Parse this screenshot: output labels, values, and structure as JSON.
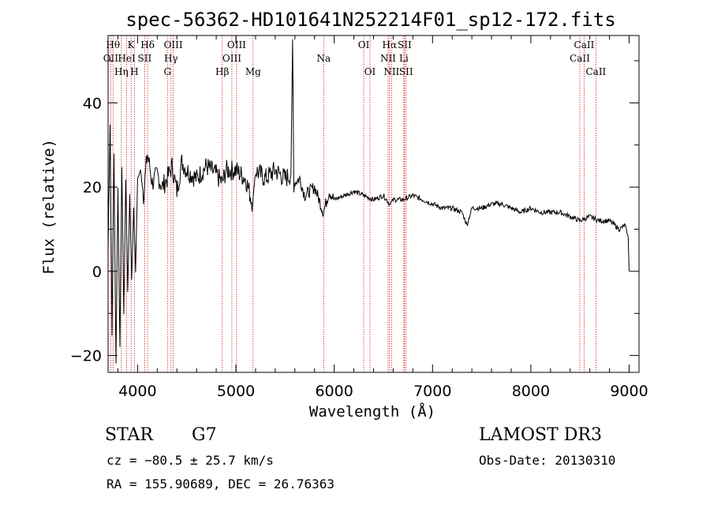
{
  "chart_data": {
    "type": "line",
    "title": "spec-56362-HD101641N252214F01_sp12-172.fits",
    "xlabel": "Wavelength (Å)",
    "ylabel": "Flux (relative)",
    "xlim": [
      3700,
      9100
    ],
    "ylim": [
      -24,
      56
    ],
    "xticks": [
      4000,
      5000,
      6000,
      7000,
      8000,
      9000
    ],
    "xtick_labels": [
      "4000",
      "5000",
      "6000",
      "7000",
      "8000",
      "9000"
    ],
    "yticks": [
      -20,
      0,
      20,
      40
    ],
    "ytick_labels": [
      "−20",
      "0",
      "20",
      "40"
    ],
    "grid": false,
    "series": [
      {
        "name": "spectrum",
        "x": [
          3700,
          3720,
          3740,
          3760,
          3780,
          3800,
          3820,
          3840,
          3860,
          3880,
          3900,
          3920,
          3940,
          3960,
          3980,
          4000,
          4030,
          4060,
          4100,
          4150,
          4200,
          4250,
          4300,
          4350,
          4400,
          4450,
          4500,
          4600,
          4700,
          4800,
          4860,
          4900,
          5000,
          5100,
          5170,
          5200,
          5300,
          5400,
          5500,
          5560,
          5577,
          5590,
          5650,
          5700,
          5800,
          5890,
          5950,
          6000,
          6100,
          6200,
          6300,
          6400,
          6500,
          6563,
          6600,
          6700,
          6800,
          6900,
          7000,
          7100,
          7200,
          7300,
          7350,
          7400,
          7500,
          7600,
          7700,
          7800,
          7900,
          8000,
          8100,
          8200,
          8300,
          8400,
          8500,
          8600,
          8700,
          8800,
          8900,
          8960,
          8990,
          9000
        ],
        "y": [
          5,
          35,
          -15,
          28,
          -22,
          20,
          -18,
          25,
          -10,
          22,
          -5,
          18,
          -2,
          15,
          0,
          22,
          24,
          18,
          28,
          21,
          23,
          20,
          22,
          25,
          19,
          26,
          24,
          22,
          25,
          23,
          21,
          24,
          24,
          22,
          16,
          24,
          22,
          24,
          22,
          23,
          55,
          21,
          22,
          18,
          20,
          14,
          19,
          17,
          18,
          19,
          18,
          17,
          18,
          16,
          17,
          17,
          18,
          17,
          16,
          15,
          15,
          14,
          11,
          15,
          15,
          16,
          16,
          15,
          14,
          15,
          14,
          14,
          14,
          13,
          12,
          13,
          12,
          12,
          10,
          11,
          8,
          0
        ]
      }
    ],
    "spectral_lines": [
      {
        "label": "OII",
        "wavelength": 3727,
        "row": 1
      },
      {
        "label": "Hθ",
        "wavelength": 3750,
        "row": 0
      },
      {
        "label": "Hη",
        "wavelength": 3835,
        "row": 2
      },
      {
        "label": "HeI",
        "wavelength": 3889,
        "row": 1
      },
      {
        "label": "K",
        "wavelength": 3934,
        "row": 0
      },
      {
        "label": "H",
        "wavelength": 3968,
        "row": 2
      },
      {
        "label": "SII",
        "wavelength": 4072,
        "row": 1
      },
      {
        "label": "Hδ",
        "wavelength": 4102,
        "row": 0
      },
      {
        "label": "OIII",
        "wavelength": 4363,
        "row": 0
      },
      {
        "label": "Hγ",
        "wavelength": 4340,
        "row": 1
      },
      {
        "label": "G",
        "wavelength": 4304,
        "row": 2
      },
      {
        "label": "Hβ",
        "wavelength": 4861,
        "row": 2
      },
      {
        "label": "OIII",
        "wavelength": 4959,
        "row": 1
      },
      {
        "label": "OIII",
        "wavelength": 5007,
        "row": 0
      },
      {
        "label": "Mg",
        "wavelength": 5175,
        "row": 2
      },
      {
        "label": "Na",
        "wavelength": 5893,
        "row": 1
      },
      {
        "label": "OI",
        "wavelength": 6300,
        "row": 0
      },
      {
        "label": "OI",
        "wavelength": 6364,
        "row": 2
      },
      {
        "label": "NII",
        "wavelength": 6548,
        "row": 1
      },
      {
        "label": "Hα",
        "wavelength": 6563,
        "row": 0
      },
      {
        "label": "NII",
        "wavelength": 6583,
        "row": 2
      },
      {
        "label": "Li",
        "wavelength": 6708,
        "row": 1
      },
      {
        "label": "SII",
        "wavelength": 6716,
        "row": 0
      },
      {
        "label": "SII",
        "wavelength": 6731,
        "row": 2
      },
      {
        "label": "CaII",
        "wavelength": 8498,
        "row": 1
      },
      {
        "label": "CaII",
        "wavelength": 8542,
        "row": 0
      },
      {
        "label": "CaII",
        "wavelength": 8662,
        "row": 2
      }
    ]
  },
  "info": {
    "class": "STAR",
    "subclass": "G7",
    "survey": "LAMOST DR3",
    "redshift": "cz = −80.5 ± 25.7 km/s",
    "obs_date": "Obs-Date: 20130310",
    "coords": "RA = 155.90689, DEC =  26.76363"
  }
}
